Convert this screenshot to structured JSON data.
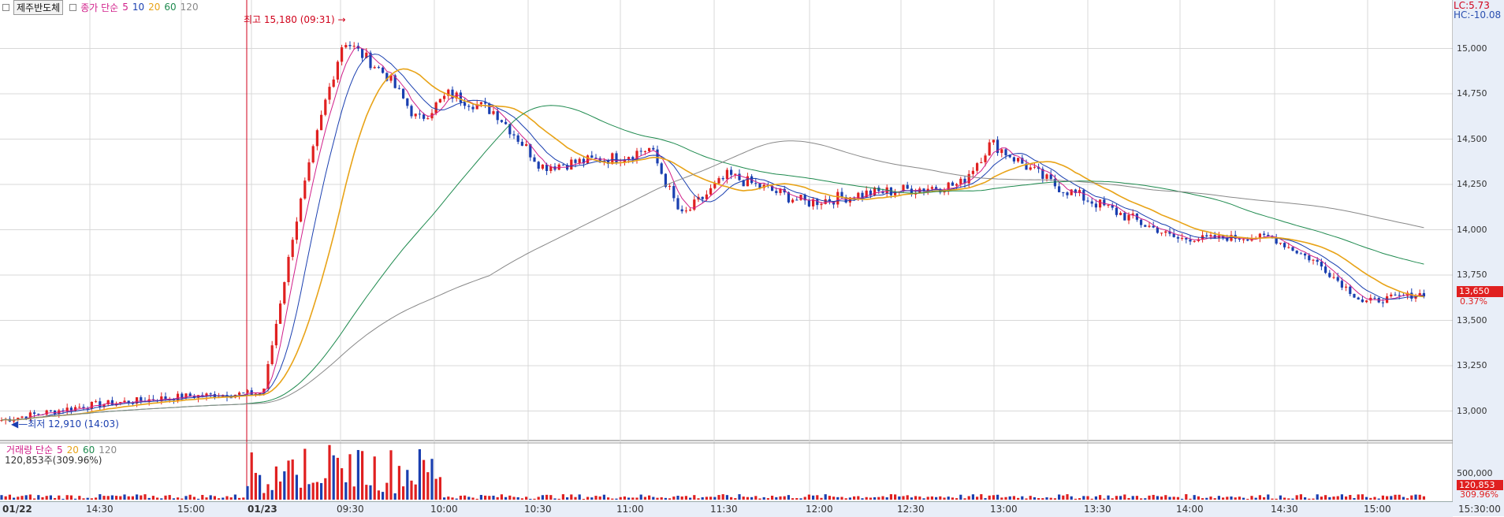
{
  "legend": {
    "name": "제주반도체",
    "label": "종가 단순",
    "periods": [
      "5",
      "10",
      "20",
      "60",
      "120"
    ],
    "colors": [
      "#d11f8a",
      "#1a3fb0",
      "#e8a317",
      "#1e8a4e",
      "#888888"
    ]
  },
  "vol_legend": {
    "label": "거래량 단순",
    "periods": [
      "5",
      "20",
      "60",
      "120"
    ],
    "colors": [
      "#d11f8a",
      "#e8a317",
      "#1e8a4e",
      "#888888"
    ],
    "current": "120,853주(309.96%)"
  },
  "top_right": {
    "lc": "LC:5.73",
    "hc": "HC:-10.08"
  },
  "annotations": {
    "high": "최고 15,180 (09:31)",
    "low": "최저 12,910 (14:03)"
  },
  "price_axis": [
    "15,000",
    "14,750",
    "14,500",
    "14,250",
    "14,000",
    "13,750",
    "13,500",
    "13,250",
    "13,000"
  ],
  "current_price": {
    "value": "13,650",
    "pct": "0.37%"
  },
  "volume_axis": {
    "tick": "500,000",
    "current": "120,853",
    "pct": "309.96%"
  },
  "time_axis": {
    "labels": [
      "01/22",
      "14:30",
      "15:00",
      "01/23",
      "09:30",
      "10:00",
      "10:30",
      "11:00",
      "11:30",
      "12:00",
      "12:30",
      "13:00",
      "13:30",
      "14:00",
      "14:30",
      "15:00"
    ],
    "end": "15:30:00"
  },
  "colors": {
    "up": "#e02020",
    "down": "#1a3fb0",
    "bg": "#ffffff",
    "grid": "#d8d8d8",
    "axis_bg": "#e8eef8"
  },
  "chart_data": {
    "type": "candlestick",
    "title": "제주반도체",
    "ylim": [
      12850,
      15250
    ],
    "high": 15180,
    "low": 12910,
    "last": 13650,
    "key_points": [
      {
        "t": "01/22 14:03",
        "close": 12950
      },
      {
        "t": "01/22 14:30",
        "close": 13030
      },
      {
        "t": "01/22 15:00",
        "close": 13080
      },
      {
        "t": "01/23 09:05",
        "close": 13100
      },
      {
        "t": "01/23 09:15",
        "close": 14000
      },
      {
        "t": "01/23 09:25",
        "close": 14700
      },
      {
        "t": "01/23 09:31",
        "close": 15050
      },
      {
        "t": "01/23 09:45",
        "close": 14850
      },
      {
        "t": "01/23 09:55",
        "close": 14600
      },
      {
        "t": "01/23 10:05",
        "close": 14750
      },
      {
        "t": "01/23 10:20",
        "close": 14650
      },
      {
        "t": "01/23 10:35",
        "close": 14350
      },
      {
        "t": "01/23 11:00",
        "close": 14400
      },
      {
        "t": "01/23 11:10",
        "close": 14450
      },
      {
        "t": "01/23 11:20",
        "close": 14070
      },
      {
        "t": "01/23 11:35",
        "close": 14300
      },
      {
        "t": "01/23 12:00",
        "close": 14150
      },
      {
        "t": "01/23 12:20",
        "close": 14200
      },
      {
        "t": "01/23 12:50",
        "close": 14250
      },
      {
        "t": "01/23 13:00",
        "close": 14480
      },
      {
        "t": "01/23 13:20",
        "close": 14250
      },
      {
        "t": "01/23 13:40",
        "close": 14100
      },
      {
        "t": "01/23 14:00",
        "close": 13950
      },
      {
        "t": "01/23 14:30",
        "close": 13960
      },
      {
        "t": "01/23 14:45",
        "close": 13820
      },
      {
        "t": "01/23 15:00",
        "close": 13600
      },
      {
        "t": "01/23 15:20",
        "close": 13650
      }
    ]
  }
}
